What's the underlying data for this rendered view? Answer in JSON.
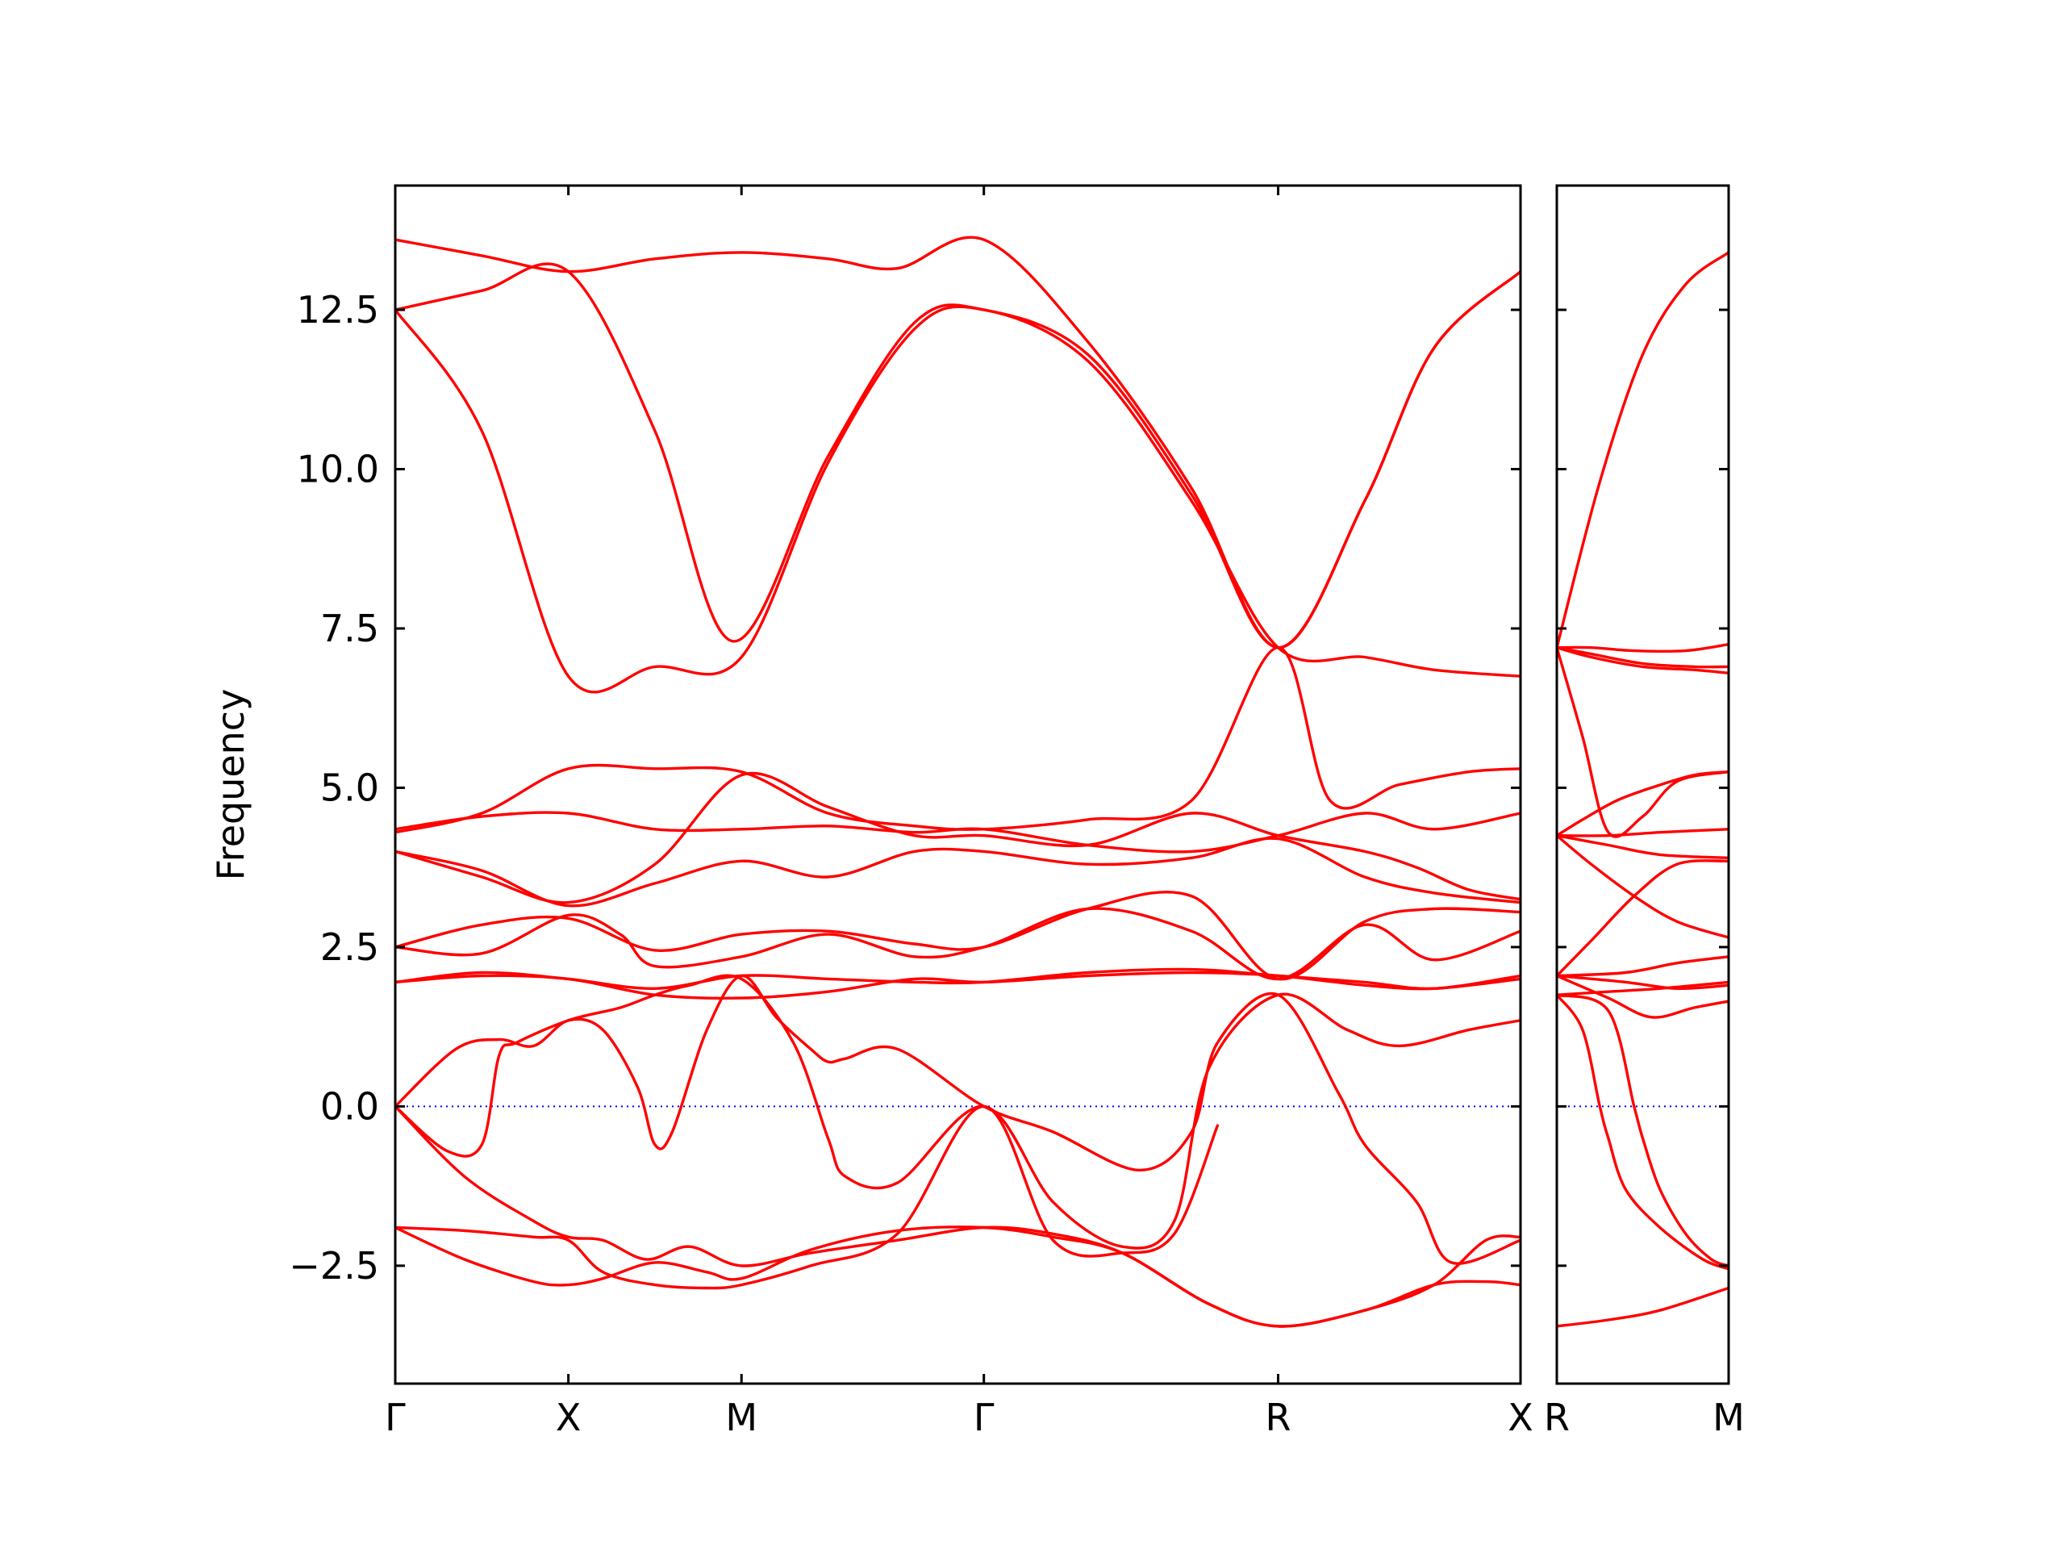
{
  "chart_data": {
    "type": "line",
    "ylabel": "Frequency",
    "ylim": [
      -4.35,
      14.45
    ],
    "yticks": [
      -2.5,
      0.0,
      2.5,
      5.0,
      7.5,
      10.0,
      12.5
    ],
    "ytick_labels": [
      "−2.5",
      "0.0",
      "2.5",
      "5.0",
      "7.5",
      "10.0",
      "12.5"
    ],
    "zero_line": {
      "y": 0,
      "color": "#0000ff",
      "style": "dotted"
    },
    "colors": {
      "bands": "#ff0000",
      "zero_line": "#0000ff",
      "frame": "#000000"
    },
    "grid": false,
    "panels": [
      {
        "xlim": [
          0,
          6.5
        ],
        "path_labels": [
          "Γ",
          "X",
          "M",
          "Γ",
          "R",
          "X"
        ],
        "path_positions": [
          0,
          1,
          2,
          3.4,
          5.1,
          6.5
        ],
        "series": [
          {
            "x": [
              0,
              0.5,
              1,
              1.5,
              2,
              2.5,
              2.9,
              3.4,
              4.0,
              4.6,
              5.1,
              5.6,
              6.0,
              6.5
            ],
            "y": [
              13.6,
              13.35,
              13.1,
              13.3,
              13.4,
              13.3,
              13.15,
              13.6,
              12.0,
              9.7,
              7.2,
              9.5,
              11.9,
              13.1
            ]
          },
          {
            "x": [
              0,
              0.5,
              1,
              1.5,
              1.95,
              2.5,
              3.0,
              3.4,
              4.0,
              4.6,
              5.1,
              5.6,
              6.0,
              6.5
            ],
            "y": [
              12.5,
              12.8,
              13.1,
              10.6,
              7.3,
              10.2,
              12.3,
              12.5,
              11.8,
              9.6,
              7.2,
              9.5,
              11.9,
              13.1
            ]
          },
          {
            "x": [
              0,
              0.5,
              1,
              1.5,
              2,
              2.5,
              3.0,
              3.4,
              4.0,
              4.6,
              5.1,
              5.6,
              6.0,
              6.5
            ],
            "y": [
              12.5,
              10.6,
              6.75,
              6.9,
              7.05,
              10.1,
              12.2,
              12.5,
              11.7,
              9.5,
              7.2,
              7.05,
              6.85,
              6.75
            ]
          },
          {
            "x": [
              0,
              0.5,
              1,
              1.5,
              2,
              2.5,
              3.0,
              3.4,
              4.0,
              4.6,
              5.1,
              5.4,
              5.8,
              6.2,
              6.5
            ],
            "y": [
              4.3,
              4.6,
              5.3,
              5.3,
              5.25,
              4.6,
              4.4,
              4.35,
              4.5,
              4.8,
              7.2,
              4.8,
              5.05,
              5.25,
              5.3
            ]
          },
          {
            "x": [
              0,
              0.5,
              1,
              1.5,
              2,
              2.5,
              3.0,
              3.4,
              4.0,
              4.6,
              5.1,
              5.6,
              6.0,
              6.5
            ],
            "y": [
              4.35,
              4.55,
              4.6,
              4.35,
              4.35,
              4.4,
              4.3,
              4.35,
              4.1,
              4.0,
              4.25,
              4.6,
              4.35,
              4.6
            ]
          },
          {
            "x": [
              0,
              0.5,
              1,
              1.5,
              2,
              2.5,
              3.0,
              3.4,
              4.0,
              4.6,
              5.1,
              5.6,
              5.9,
              6.2,
              6.5
            ],
            "y": [
              4.0,
              3.6,
              3.2,
              3.8,
              5.2,
              4.7,
              4.25,
              4.25,
              4.1,
              4.6,
              4.25,
              4.0,
              3.75,
              3.4,
              3.25
            ]
          },
          {
            "x": [
              0,
              0.5,
              1,
              1.5,
              2,
              2.5,
              3.0,
              3.4,
              4.0,
              4.6,
              5.1,
              5.6,
              6.0,
              6.5
            ],
            "y": [
              4.0,
              3.7,
              3.15,
              3.5,
              3.85,
              3.6,
              4.0,
              4.0,
              3.8,
              3.9,
              4.2,
              3.6,
              3.35,
              3.2
            ]
          },
          {
            "x": [
              0,
              0.5,
              1,
              1.5,
              2,
              2.5,
              3.0,
              3.4,
              4.0,
              4.6,
              5.1,
              5.6,
              6.0,
              6.5
            ],
            "y": [
              2.5,
              2.85,
              2.95,
              2.45,
              2.7,
              2.75,
              2.55,
              2.5,
              3.1,
              3.3,
              2.0,
              2.9,
              3.1,
              3.05
            ]
          },
          {
            "x": [
              0,
              0.5,
              1,
              1.3,
              1.5,
              2,
              2.5,
              3.0,
              3.4,
              4.0,
              4.6,
              5.1,
              5.6,
              6.0,
              6.5
            ],
            "y": [
              2.5,
              2.4,
              3.0,
              2.7,
              2.2,
              2.35,
              2.7,
              2.35,
              2.5,
              3.1,
              2.75,
              2.0,
              2.85,
              2.3,
              2.75
            ]
          },
          {
            "x": [
              0,
              0.5,
              1,
              1.5,
              2,
              2.5,
              3.0,
              3.4,
              4.0,
              4.6,
              5.1,
              5.6,
              6.0,
              6.5
            ],
            "y": [
              1.95,
              2.1,
              2.0,
              1.85,
              2.05,
              2.0,
              1.95,
              1.95,
              2.1,
              2.15,
              2.05,
              1.95,
              1.85,
              2.05
            ]
          },
          {
            "x": [
              0,
              0.5,
              1,
              1.5,
              2,
              2.5,
              3.0,
              3.4,
              4.0,
              4.6,
              5.1,
              5.6,
              6.0,
              6.5
            ],
            "y": [
              1.95,
              2.05,
              2.0,
              1.75,
              1.7,
              1.8,
              2.0,
              1.95,
              2.05,
              2.1,
              2.05,
              1.9,
              1.85,
              2.0
            ]
          },
          {
            "x": [
              0,
              0.35,
              0.6,
              0.8,
              1.0,
              1.2,
              1.4,
              1.5,
              1.6,
              1.8,
              2.0,
              2.2,
              2.4,
              2.5,
              2.6,
              2.9,
              3.4,
              3.8,
              4.3,
              4.6,
              4.75,
              5.1,
              5.45,
              5.6,
              5.9,
              6.1,
              6.5
            ],
            "y": [
              0.0,
              0.9,
              1.05,
              0.95,
              1.35,
              1.2,
              0.3,
              -0.6,
              -0.4,
              1.2,
              2.05,
              1.4,
              0.9,
              0.7,
              0.75,
              0.9,
              0.0,
              -0.4,
              -1.0,
              -0.4,
              1.0,
              1.75,
              0.2,
              -0.6,
              -1.5,
              -2.45,
              -2.1
            ]
          },
          {
            "x": [
              0,
              0.3,
              0.5,
              0.6,
              0.7,
              1.0,
              1.3,
              1.5,
              1.7,
              2.0,
              2.3,
              2.5,
              2.6,
              2.9,
              3.4,
              3.8,
              4.2,
              4.5,
              4.7,
              5.1,
              5.5,
              5.8,
              6.2,
              6.5
            ],
            "y": [
              0.0,
              -0.7,
              -0.6,
              0.8,
              1.0,
              1.35,
              1.55,
              1.75,
              1.9,
              2.0,
              1.0,
              -0.5,
              -1.1,
              -1.2,
              0.0,
              -1.5,
              -2.2,
              -1.8,
              0.6,
              1.75,
              1.2,
              0.95,
              1.2,
              1.35
            ]
          },
          {
            "x": [
              0,
              0.4,
              0.8,
              1.0,
              1.2,
              1.45,
              1.7,
              2.0,
              2.4,
              2.9,
              3.4,
              3.8,
              4.2,
              4.7,
              5.1,
              5.6,
              6.0,
              6.3,
              6.5
            ],
            "y": [
              0.0,
              -1.1,
              -1.8,
              -2.05,
              -2.1,
              -2.4,
              -2.2,
              -2.5,
              -2.3,
              -2.1,
              -1.9,
              -2.0,
              -2.3,
              -3.1,
              -3.45,
              -3.2,
              -2.8,
              -2.75,
              -2.8
            ]
          },
          {
            "x": [
              0,
              0.4,
              0.8,
              1.0,
              1.2,
              1.5,
              1.8,
              2.0,
              2.4,
              2.9,
              3.4,
              3.8,
              4.2,
              4.7,
              5.1,
              5.6,
              6.0,
              6.3,
              6.5
            ],
            "y": [
              -1.9,
              -2.4,
              -2.75,
              -2.8,
              -2.7,
              -2.45,
              -2.6,
              -2.7,
              -2.25,
              -1.95,
              -1.9,
              -2.05,
              -2.3,
              -3.1,
              -3.45,
              -3.2,
              -2.8,
              -2.1,
              -2.05
            ]
          },
          {
            "x": [
              0,
              0.4,
              0.8,
              1.0,
              1.2,
              1.5,
              1.8,
              2.0,
              2.4,
              2.9,
              3.4,
              3.8,
              4.2,
              4.5,
              4.75
            ],
            "y": [
              -1.9,
              -1.95,
              -2.05,
              -2.1,
              -2.6,
              -2.8,
              -2.85,
              -2.8,
              -2.5,
              -2.0,
              0.0,
              -2.1,
              -2.3,
              -2.0,
              -0.3
            ]
          }
        ]
      },
      {
        "xlim": [
          0,
          1
        ],
        "path_labels": [
          "R",
          "M"
        ],
        "path_positions": [
          0,
          1
        ],
        "series": [
          {
            "x": [
              0,
              0.25,
              0.5,
              0.75,
              1
            ],
            "y": [
              7.2,
              9.8,
              11.8,
              12.9,
              13.4
            ]
          },
          {
            "x": [
              0,
              0.2,
              0.45,
              0.75,
              1
            ],
            "y": [
              7.2,
              7.2,
              7.15,
              7.15,
              7.25
            ]
          },
          {
            "x": [
              0,
              0.2,
              0.5,
              0.8,
              1
            ],
            "y": [
              7.2,
              7.1,
              6.95,
              6.9,
              6.9
            ]
          },
          {
            "x": [
              0,
              0.2,
              0.5,
              0.8,
              1
            ],
            "y": [
              7.2,
              7.05,
              6.9,
              6.85,
              6.8
            ]
          },
          {
            "x": [
              0,
              0.15,
              0.3,
              0.5,
              0.7,
              1
            ],
            "y": [
              7.2,
              5.8,
              4.3,
              4.55,
              5.1,
              5.25
            ]
          },
          {
            "x": [
              0,
              0.15,
              0.35,
              0.55,
              0.8,
              1
            ],
            "y": [
              4.25,
              4.5,
              4.8,
              5.0,
              5.2,
              5.25
            ]
          },
          {
            "x": [
              0,
              0.3,
              0.6,
              1
            ],
            "y": [
              4.25,
              4.25,
              4.3,
              4.35
            ]
          },
          {
            "x": [
              0,
              0.3,
              0.6,
              1
            ],
            "y": [
              4.25,
              4.1,
              3.95,
              3.9
            ]
          },
          {
            "x": [
              0,
              0.2,
              0.45,
              0.7,
              1
            ],
            "y": [
              4.25,
              3.8,
              3.3,
              2.9,
              2.65
            ]
          },
          {
            "x": [
              0,
              0.2,
              0.45,
              0.7,
              1
            ],
            "y": [
              2.05,
              2.6,
              3.3,
              3.8,
              3.85
            ]
          },
          {
            "x": [
              0,
              0.4,
              0.7,
              1
            ],
            "y": [
              2.05,
              2.1,
              2.25,
              2.35
            ]
          },
          {
            "x": [
              0,
              0.3,
              0.55,
              0.8,
              1
            ],
            "y": [
              2.05,
              1.7,
              1.4,
              1.55,
              1.65
            ]
          },
          {
            "x": [
              0,
              0.4,
              0.7,
              1
            ],
            "y": [
              2.05,
              1.95,
              1.85,
              1.9
            ]
          },
          {
            "x": [
              0,
              0.3,
              0.6,
              1
            ],
            "y": [
              1.75,
              1.8,
              1.85,
              1.95
            ]
          },
          {
            "x": [
              0,
              0.15,
              0.25,
              0.3,
              0.4,
              0.6,
              0.85,
              1
            ],
            "y": [
              1.75,
              1.2,
              0.0,
              -0.5,
              -1.3,
              -1.9,
              -2.4,
              -2.55
            ]
          },
          {
            "x": [
              0,
              0.3,
              0.45,
              0.5,
              0.6,
              0.75,
              0.9,
              1
            ],
            "y": [
              1.75,
              1.5,
              0.0,
              -0.5,
              -1.3,
              -2.0,
              -2.4,
              -2.5
            ]
          },
          {
            "x": [
              0,
              0.3,
              0.6,
              1
            ],
            "y": [
              -3.45,
              -3.35,
              -3.2,
              -2.85
            ]
          }
        ]
      }
    ]
  }
}
